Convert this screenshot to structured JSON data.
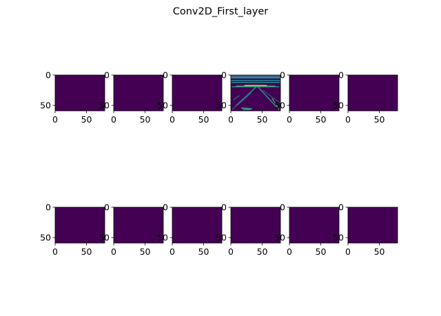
{
  "title": "Conv2D_First_layer",
  "colors": {
    "background": "#ffffff",
    "axis": "#000000",
    "viridis_low": "#440154",
    "viridis_mid": "#31688e",
    "viridis_teal": "#21918c",
    "viridis_green": "#5ec962",
    "viridis_high": "#fde725"
  },
  "chart_data": {
    "type": "heatmap",
    "title": "Conv2D_First_layer",
    "grid": false,
    "colormap": "viridis",
    "layout": {
      "rows": 2,
      "cols": 6
    },
    "axes": {
      "xlim": [
        0,
        79
      ],
      "ylim": [
        59,
        0
      ],
      "xticks": [
        0,
        50
      ],
      "yticks": [
        0,
        50
      ],
      "xtick_labels": [
        "0",
        "50"
      ],
      "ytick_labels": [
        "0",
        "50"
      ]
    },
    "panels": [
      {
        "row": 0,
        "col": 0,
        "content": "uniform-low"
      },
      {
        "row": 0,
        "col": 1,
        "content": "uniform-low"
      },
      {
        "row": 0,
        "col": 2,
        "content": "uniform-low"
      },
      {
        "row": 0,
        "col": 3,
        "content": "road-edge-activation"
      },
      {
        "row": 0,
        "col": 4,
        "content": "uniform-low"
      },
      {
        "row": 0,
        "col": 5,
        "content": "uniform-low"
      },
      {
        "row": 1,
        "col": 0,
        "content": "uniform-low"
      },
      {
        "row": 1,
        "col": 1,
        "content": "uniform-low"
      },
      {
        "row": 1,
        "col": 2,
        "content": "uniform-low"
      },
      {
        "row": 1,
        "col": 3,
        "content": "uniform-low"
      },
      {
        "row": 1,
        "col": 4,
        "content": "uniform-low"
      },
      {
        "row": 1,
        "col": 5,
        "content": "uniform-low"
      }
    ]
  }
}
